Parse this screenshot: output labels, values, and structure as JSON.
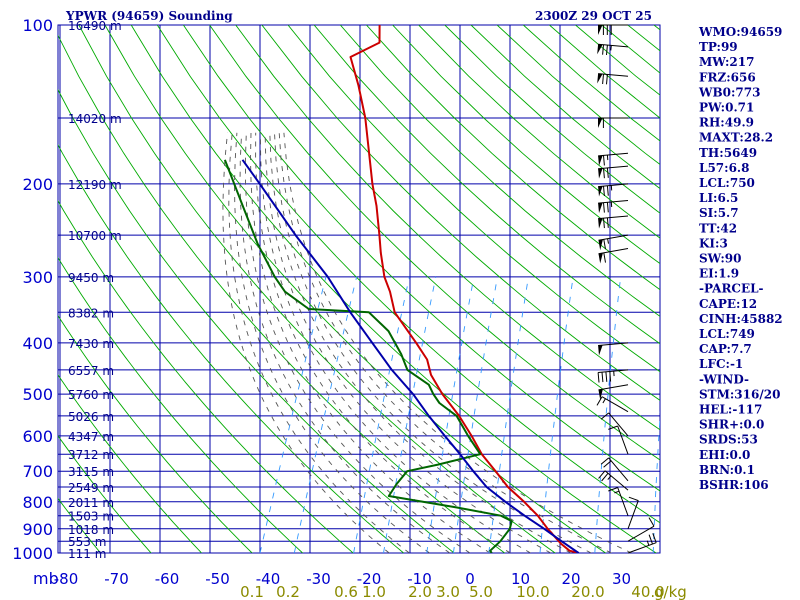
{
  "header": {
    "station": "YPWR (94659) Sounding",
    "time": "2300Z 29 OCT 25"
  },
  "colors": {
    "grid": "#0000aa",
    "dry_adiabat": "#00aa00",
    "moist_adiabat": "#555555",
    "mixing_ratio": "#3399ff",
    "temperature": "#cc0000",
    "dewpoint": "#006600",
    "parcel": "#0000aa"
  },
  "chart_data": {
    "type": "line",
    "title": "YPWR (94659) Sounding",
    "diagram": "skew-T log-P",
    "pressure_levels_hPa": [
      100,
      200,
      300,
      400,
      500,
      600,
      700,
      800,
      900,
      1000
    ],
    "pressure_tick_labels": [
      "100",
      "200",
      "300",
      "400",
      "500",
      "600",
      "700",
      "800",
      "900",
      "1000"
    ],
    "pressure_unit_label": "mb",
    "temperature_ticks_C": [
      -80,
      -70,
      -60,
      -50,
      -40,
      -30,
      -20,
      -10,
      0,
      10,
      20,
      30
    ],
    "temperature_tick_labels": [
      "-80",
      "-70",
      "-60",
      "-50",
      "-40",
      "-30",
      "-20",
      "-10",
      "0",
      "10",
      "20",
      "30"
    ],
    "mixing_ratio_labels": [
      "0.1",
      "0.2",
      "0.6",
      "1.0",
      "2.0",
      "3.0",
      "5.0",
      "10.0",
      "20.0",
      "40.0"
    ],
    "mixing_ratio_unit": "g/kg",
    "height_labels": [
      {
        "p": 100,
        "label": "16490 m"
      },
      {
        "p": 150,
        "label": "14020 m"
      },
      {
        "p": 200,
        "label": "12190 m"
      },
      {
        "p": 250,
        "label": "10700 m"
      },
      {
        "p": 300,
        "label": "9450 m"
      },
      {
        "p": 350,
        "label": "8382 m"
      },
      {
        "p": 400,
        "label": "7430 m"
      },
      {
        "p": 450,
        "label": "6557 m"
      },
      {
        "p": 500,
        "label": "5760 m"
      },
      {
        "p": 550,
        "label": "5026 m"
      },
      {
        "p": 600,
        "label": "4347 m"
      },
      {
        "p": 650,
        "label": "3712 m"
      },
      {
        "p": 700,
        "label": "3115 m"
      },
      {
        "p": 750,
        "label": "2549 m"
      },
      {
        "p": 800,
        "label": "2011 m"
      },
      {
        "p": 850,
        "label": "1503 m"
      },
      {
        "p": 900,
        "label": "1018 m"
      },
      {
        "p": 950,
        "label": "553 m"
      },
      {
        "p": 1000,
        "label": "111 m"
      }
    ],
    "series": [
      {
        "name": "Temperature",
        "points": [
          {
            "p": 1000,
            "t": 21.5
          },
          {
            "p": 990,
            "t": 19.5
          },
          {
            "p": 960,
            "t": 17.2
          },
          {
            "p": 900,
            "t": 13.3
          },
          {
            "p": 850,
            "t": 10.2
          },
          {
            "p": 800,
            "t": 6.3
          },
          {
            "p": 750,
            "t": 1.8
          },
          {
            "p": 700,
            "t": -2.0
          },
          {
            "p": 650,
            "t": -6.2
          },
          {
            "p": 600,
            "t": -9.8
          },
          {
            "p": 550,
            "t": -14.0
          },
          {
            "p": 500,
            "t": -19.2
          },
          {
            "p": 460,
            "t": -23.1
          },
          {
            "p": 430,
            "t": -25.2
          },
          {
            "p": 400,
            "t": -28.8
          },
          {
            "p": 350,
            "t": -35.7
          },
          {
            "p": 320,
            "t": -38.4
          },
          {
            "p": 300,
            "t": -40.8
          },
          {
            "p": 270,
            "t": -43.6
          },
          {
            "p": 250,
            "t": -45.4
          },
          {
            "p": 220,
            "t": -48.5
          },
          {
            "p": 200,
            "t": -51.2
          },
          {
            "p": 170,
            "t": -55.2
          },
          {
            "p": 150,
            "t": -58.3
          },
          {
            "p": 130,
            "t": -62.5
          },
          {
            "p": 115,
            "t": -66.5
          },
          {
            "p": 108,
            "t": -62.0
          },
          {
            "p": 100,
            "t": -63.5
          }
        ]
      },
      {
        "name": "Dewpoint",
        "points": [
          {
            "p": 1000,
            "t": 4.3
          },
          {
            "p": 990,
            "t": 3.8
          },
          {
            "p": 950,
            "t": 5.0
          },
          {
            "p": 900,
            "t": 5.8
          },
          {
            "p": 870,
            "t": 5.5
          },
          {
            "p": 850,
            "t": 2.9
          },
          {
            "p": 820,
            "t": -6.5
          },
          {
            "p": 780,
            "t": -21.0
          },
          {
            "p": 740,
            "t": -20.5
          },
          {
            "p": 700,
            "t": -19.5
          },
          {
            "p": 680,
            "t": -14.0
          },
          {
            "p": 650,
            "t": -6.5
          },
          {
            "p": 600,
            "t": -10.5
          },
          {
            "p": 550,
            "t": -14.5
          },
          {
            "p": 520,
            "t": -19.0
          },
          {
            "p": 500,
            "t": -21.0
          },
          {
            "p": 480,
            "t": -22.7
          },
          {
            "p": 450,
            "t": -28.2
          },
          {
            "p": 420,
            "t": -30.8
          },
          {
            "p": 380,
            "t": -35.3
          },
          {
            "p": 350,
            "t": -40.8
          },
          {
            "p": 345,
            "t": -53.0
          },
          {
            "p": 320,
            "t": -59.2
          },
          {
            "p": 300,
            "t": -62.5
          },
          {
            "p": 260,
            "t": -68.7
          },
          {
            "p": 220,
            "t": -75.0
          },
          {
            "p": 180,
            "t": -82.5
          }
        ]
      },
      {
        "name": "Parcel",
        "points": [
          {
            "p": 1000,
            "t": 21.5
          },
          {
            "p": 950,
            "t": 17.1
          },
          {
            "p": 900,
            "t": 12.6
          },
          {
            "p": 850,
            "t": 7.6
          },
          {
            "p": 800,
            "t": 2.6
          },
          {
            "p": 750,
            "t": -2.4
          },
          {
            "p": 700,
            "t": -6.4
          },
          {
            "p": 650,
            "t": -10.5
          },
          {
            "p": 600,
            "t": -15.1
          },
          {
            "p": 550,
            "t": -20.0
          },
          {
            "p": 500,
            "t": -25.0
          },
          {
            "p": 450,
            "t": -31.3
          },
          {
            "p": 400,
            "t": -37.5
          },
          {
            "p": 350,
            "t": -44.5
          },
          {
            "p": 300,
            "t": -52.0
          },
          {
            "p": 250,
            "t": -62.0
          },
          {
            "p": 200,
            "t": -73.5
          },
          {
            "p": 180,
            "t": -79.0
          }
        ]
      }
    ],
    "wind_barbs": [
      {
        "p": 100,
        "dir": 270,
        "spd": 80
      },
      {
        "p": 110,
        "dir": 275,
        "spd": 75
      },
      {
        "p": 125,
        "dir": 275,
        "spd": 70
      },
      {
        "p": 150,
        "dir": 270,
        "spd": 60
      },
      {
        "p": 175,
        "dir": 265,
        "spd": 65
      },
      {
        "p": 185,
        "dir": 265,
        "spd": 70
      },
      {
        "p": 200,
        "dir": 265,
        "spd": 75
      },
      {
        "p": 215,
        "dir": 265,
        "spd": 75
      },
      {
        "p": 230,
        "dir": 265,
        "spd": 70
      },
      {
        "p": 250,
        "dir": 260,
        "spd": 65
      },
      {
        "p": 265,
        "dir": 260,
        "spd": 60
      },
      {
        "p": 400,
        "dir": 265,
        "spd": 50
      },
      {
        "p": 450,
        "dir": 265,
        "spd": 45
      },
      {
        "p": 480,
        "dir": 260,
        "spd": 50
      },
      {
        "p": 540,
        "dir": 300,
        "spd": 15
      },
      {
        "p": 600,
        "dir": 320,
        "spd": 10
      },
      {
        "p": 650,
        "dir": 340,
        "spd": 10
      },
      {
        "p": 730,
        "dir": 320,
        "spd": 20
      },
      {
        "p": 760,
        "dir": 310,
        "spd": 25
      },
      {
        "p": 850,
        "dir": 340,
        "spd": 15
      },
      {
        "p": 900,
        "dir": 20,
        "spd": 10
      },
      {
        "p": 950,
        "dir": 60,
        "spd": 10
      },
      {
        "p": 1000,
        "dir": 70,
        "spd": 25
      }
    ]
  },
  "indices": [
    "WMO:94659",
    "TP:99",
    "MW:217",
    "FRZ:656",
    "WB0:773",
    "PW:0.71",
    "RH:49.9",
    "MAXT:28.2",
    "TH:5649",
    "L57:6.8",
    "LCL:750",
    "LI:6.5",
    "SI:5.7",
    "TT:42",
    "KI:3",
    "SW:90",
    "EI:1.9",
    "-PARCEL-",
    "CAPE:12",
    "CINH:45882",
    "LCL:749",
    "CAP:7.7",
    "LFC:-1",
    "-WIND-",
    "STM:316/20",
    "HEL:-117",
    "SHR+:0.0",
    "SRDS:53",
    "EHI:0.0",
    "BRN:0.1",
    "BSHR:106"
  ]
}
